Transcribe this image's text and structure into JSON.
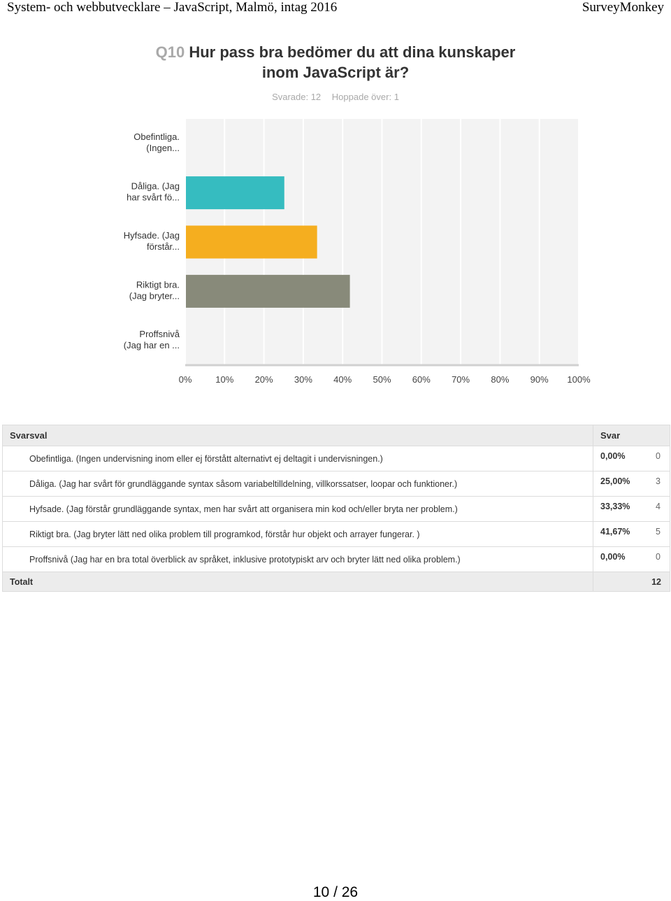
{
  "page_header": {
    "left": "System- och webbutvecklare – JavaScript, Malmö, intag 2016",
    "right": "SurveyMonkey"
  },
  "question": {
    "number": "Q10",
    "text": "Hur pass bra bedömer du att dina kunskaper inom JavaScript är?"
  },
  "stats": {
    "answered": "Svarade: 12",
    "skipped": "Hoppade över: 1"
  },
  "chart_data": {
    "type": "bar",
    "orientation": "horizontal",
    "categories": [
      [
        "Obefintliga.",
        "(Ingen..."
      ],
      [
        "Dåliga. (Jag",
        "har svårt fö..."
      ],
      [
        "Hyfsade. (Jag",
        "förstår..."
      ],
      [
        "Riktigt bra.",
        "(Jag bryter..."
      ],
      [
        "Proffsnivå",
        "(Jag har en ..."
      ]
    ],
    "values": [
      0,
      25,
      33.33,
      41.67,
      0
    ],
    "colors": [
      "#2ab8bd",
      "#36bcc0",
      "#f5ae1f",
      "#888a7a",
      "#9b8fb8"
    ],
    "xticks": [
      "0%",
      "10%",
      "20%",
      "30%",
      "40%",
      "50%",
      "60%",
      "70%",
      "80%",
      "90%",
      "100%"
    ],
    "xlim": [
      0,
      100
    ],
    "grid": true
  },
  "table": {
    "headers": [
      "Svarsval",
      "Svar"
    ],
    "rows": [
      {
        "label": "Obefintliga. (Ingen undervisning inom eller ej förstått alternativt ej deltagit i undervisningen.)",
        "percent": "0,00%",
        "count": "0"
      },
      {
        "label": "Dåliga. (Jag har svårt för grundläggande syntax såsom variabeltilldelning, villkorssatser, loopar och funktioner.)",
        "percent": "25,00%",
        "count": "3"
      },
      {
        "label": "Hyfsade. (Jag förstår grundläggande syntax, men har svårt att organisera min kod och/eller bryta ner problem.)",
        "percent": "33,33%",
        "count": "4"
      },
      {
        "label": "Riktigt bra. (Jag bryter lätt ned olika problem till programkod, förstår hur objekt och arrayer fungerar. )",
        "percent": "41,67%",
        "count": "5"
      },
      {
        "label": "Proffsnivå (Jag har en bra total överblick av språket, inklusive prototypiskt arv och bryter lätt ned olika problem.)",
        "percent": "0,00%",
        "count": "0"
      }
    ],
    "total_label": "Totalt",
    "total_value": "12"
  },
  "footer": {
    "page": "10 / 26"
  }
}
